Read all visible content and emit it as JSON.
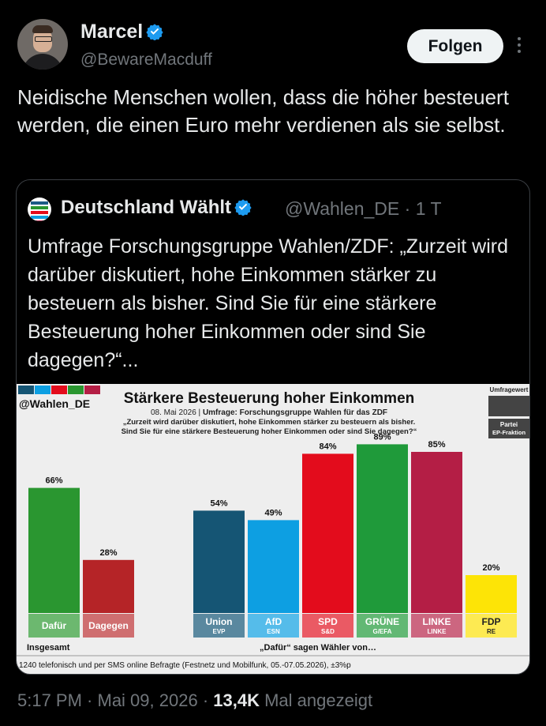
{
  "author": {
    "name": "Marcel",
    "handle": "@BewareMacduff",
    "follow_label": "Folgen"
  },
  "tweet": {
    "text": "Neidische Menschen wollen, dass die höher besteuert werden, die einen Euro mehr verdienen als sie selbst."
  },
  "quoted": {
    "name": "Deutschland Wählt",
    "handle": "@Wahlen_DE",
    "time": "1 T",
    "text": "Umfrage Forschungsgruppe Wahlen/ZDF: „Zurzeit wird darüber diskutiert, hohe Einkommen stärker zu besteuern als bisher. Sind Sie für eine stärkere Besteuerung hoher Einkommen oder sind Sie dagegen?“..."
  },
  "chart_data": {
    "type": "bar",
    "title": "Stärkere Besteuerung hoher Einkommen",
    "brand": "@Wahlen_DE",
    "subtitle_date": "08. Mai 2026",
    "subtitle_source": "Umfrage: Forschungsgruppe Wahlen für das ZDF",
    "question_line1": "„Zurzeit wird darüber diskutiert, hohe Einkommen stärker zu besteuern als bisher.",
    "question_line2": "Sind Sie für eine stärkere Besteuerung hoher Einkommen oder sind Sie dagegen?“",
    "legend_top": "Umfragewert",
    "legend_bottom_1": "Partei",
    "legend_bottom_2": "EP-Fraktion",
    "ylim": [
      0,
      100
    ],
    "groups": [
      {
        "label": "Insgesamt",
        "bars": [
          {
            "name": "Dafür",
            "sub": "",
            "value": 66,
            "color": "#2a9630",
            "label_bg": "#6cb86f"
          },
          {
            "name": "Dagegen",
            "sub": "",
            "value": 28,
            "color": "#b52427",
            "label_bg": "#cf6e70"
          }
        ]
      },
      {
        "label": "„Dafür“ sagen Wähler von…",
        "bars": [
          {
            "name": "Union",
            "sub": "EVP",
            "value": 54,
            "color": "#155574",
            "label_bg": "#5a889f"
          },
          {
            "name": "AfD",
            "sub": "ESN",
            "value": 49,
            "color": "#0d9fe2",
            "label_bg": "#55bcea"
          },
          {
            "name": "SPD",
            "sub": "S&D",
            "value": 84,
            "color": "#e30c1c",
            "label_bg": "#ea5a64"
          },
          {
            "name": "GRÜNE",
            "sub": "G/EFA",
            "value": 89,
            "color": "#1f9a3a",
            "label_bg": "#62b874"
          },
          {
            "name": "LINKE",
            "sub": "LINKE",
            "value": 85,
            "color": "#b41e45",
            "label_bg": "#cc6680"
          },
          {
            "name": "FDP",
            "sub": "RE",
            "value": 20,
            "color": "#fde406",
            "label_bg": "#fdea52"
          }
        ]
      }
    ],
    "footnote": "1240 telefonisch und per SMS online Befragte (Festnetz und Mobilfunk, 05.-07.05.2026), ±3%p"
  },
  "footer": {
    "time": "5:17 PM",
    "date": "Mai 09, 2026",
    "views": "13,4K",
    "views_label": "Mal angezeigt"
  },
  "colors": {
    "verified": "#1d9bf0",
    "background": "#000000",
    "muted": "#71767b"
  },
  "icons": {
    "verified": "verified-badge-icon",
    "more": "more-options-icon"
  }
}
